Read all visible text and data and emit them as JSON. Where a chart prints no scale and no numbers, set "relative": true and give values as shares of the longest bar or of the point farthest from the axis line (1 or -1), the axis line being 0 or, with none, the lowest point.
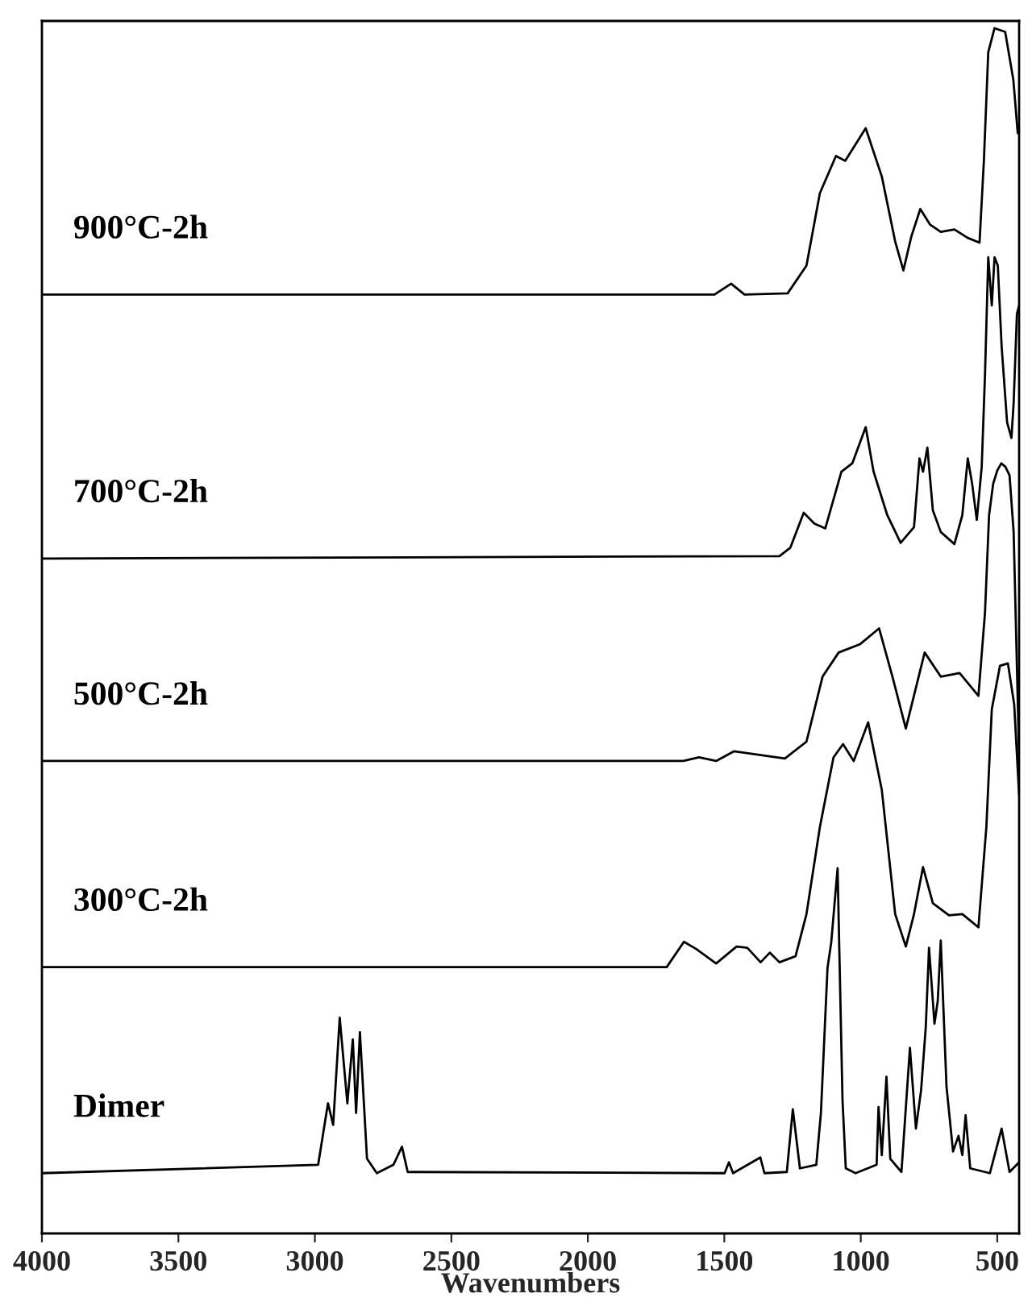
{
  "chart_data": {
    "type": "line",
    "relative": true,
    "xlabel": "Wavenumbers",
    "xlim": [
      4000,
      420
    ],
    "xticks": [
      4000,
      3500,
      3000,
      2500,
      2000,
      1500,
      1000,
      500
    ],
    "tick_labels": "x",
    "grid": false,
    "legend": false,
    "marker": "none",
    "line_style": "solid",
    "series": [
      {
        "name": "900°C-2h",
        "color": "#000000",
        "x": [
          4000,
          1536,
          1475,
          1426,
          1268,
          1199,
          1150,
          1091,
          1057,
          982,
          923,
          874,
          844,
          815,
          782,
          746,
          707,
          657,
          608,
          565,
          549,
          533,
          510,
          471,
          441,
          425
        ],
        "values": [
          0.779,
          0.779,
          0.788,
          0.779,
          0.78,
          0.803,
          0.863,
          0.894,
          0.89,
          0.917,
          0.877,
          0.823,
          0.799,
          0.827,
          0.85,
          0.837,
          0.831,
          0.833,
          0.826,
          0.822,
          0.89,
          0.98,
          1.0,
          0.997,
          0.957,
          0.913
        ]
      },
      {
        "name": "700°C-2h",
        "color": "#000000",
        "x": [
          4000,
          1298,
          1258,
          1209,
          1170,
          1130,
          1100,
          1071,
          1031,
          982,
          953,
          903,
          854,
          805,
          785,
          772,
          756,
          736,
          707,
          657,
          628,
          608,
          592,
          575,
          557,
          545,
          533,
          520,
          510,
          498,
          484,
          464,
          448,
          440,
          428,
          420
        ],
        "values": [
          0.56,
          0.562,
          0.569,
          0.598,
          0.589,
          0.585,
          0.609,
          0.632,
          0.639,
          0.669,
          0.632,
          0.596,
          0.573,
          0.586,
          0.643,
          0.632,
          0.652,
          0.6,
          0.582,
          0.572,
          0.596,
          0.643,
          0.622,
          0.592,
          0.636,
          0.712,
          0.81,
          0.77,
          0.81,
          0.803,
          0.736,
          0.673,
          0.66,
          0.689,
          0.763,
          0.77
        ]
      },
      {
        "name": "500°C-2h",
        "color": "#000000",
        "x": [
          4000,
          1650,
          1593,
          1530,
          1465,
          1278,
          1199,
          1140,
          1081,
          1002,
          933,
          884,
          835,
          766,
          707,
          638,
          569,
          545,
          530,
          515,
          500,
          485,
          470,
          455,
          440,
          430,
          420
        ],
        "values": [
          0.392,
          0.392,
          0.395,
          0.392,
          0.4,
          0.394,
          0.408,
          0.462,
          0.482,
          0.489,
          0.502,
          0.462,
          0.419,
          0.482,
          0.462,
          0.465,
          0.446,
          0.515,
          0.596,
          0.622,
          0.633,
          0.639,
          0.636,
          0.629,
          0.582,
          0.489,
          0.395
        ]
      },
      {
        "name": "300°C-2h",
        "color": "#000000",
        "x": [
          4000,
          1711,
          1648,
          1603,
          1530,
          1455,
          1416,
          1367,
          1333,
          1298,
          1239,
          1199,
          1150,
          1100,
          1065,
          1026,
          973,
          923,
          874,
          835,
          805,
          772,
          736,
          677,
          628,
          569,
          540,
          520,
          490,
          461,
          438,
          420
        ],
        "values": [
          0.221,
          0.221,
          0.242,
          0.236,
          0.224,
          0.238,
          0.237,
          0.225,
          0.233,
          0.225,
          0.23,
          0.265,
          0.337,
          0.395,
          0.406,
          0.392,
          0.424,
          0.368,
          0.265,
          0.238,
          0.265,
          0.304,
          0.274,
          0.264,
          0.265,
          0.254,
          0.337,
          0.435,
          0.471,
          0.473,
          0.439,
          0.364
        ]
      },
      {
        "name": "Dimer",
        "color": "#000000",
        "x": [
          4000,
          2988,
          2952,
          2933,
          2909,
          2881,
          2861,
          2849,
          2835,
          2809,
          2773,
          2712,
          2681,
          2660,
          1499,
          1483,
          1468,
          1368,
          1353,
          1271,
          1249,
          1223,
          1163,
          1146,
          1122,
          1108,
          1085,
          1067,
          1055,
          1019,
          942,
          935,
          923,
          906,
          892,
          851,
          820,
          798,
          779,
          762,
          750,
          730,
          718,
          707,
          686,
          662,
          642,
          628,
          616,
          599,
          527,
          484,
          455,
          420
        ],
        "values": [
          0.05,
          0.057,
          0.108,
          0.09,
          0.179,
          0.108,
          0.161,
          0.1,
          0.167,
          0.062,
          0.05,
          0.057,
          0.072,
          0.051,
          0.05,
          0.059,
          0.05,
          0.063,
          0.05,
          0.051,
          0.103,
          0.054,
          0.057,
          0.1,
          0.22,
          0.242,
          0.303,
          0.111,
          0.054,
          0.05,
          0.057,
          0.105,
          0.065,
          0.13,
          0.062,
          0.051,
          0.154,
          0.087,
          0.119,
          0.171,
          0.237,
          0.174,
          0.193,
          0.243,
          0.122,
          0.068,
          0.081,
          0.065,
          0.098,
          0.054,
          0.05,
          0.087,
          0.051,
          0.059
        ]
      }
    ]
  }
}
